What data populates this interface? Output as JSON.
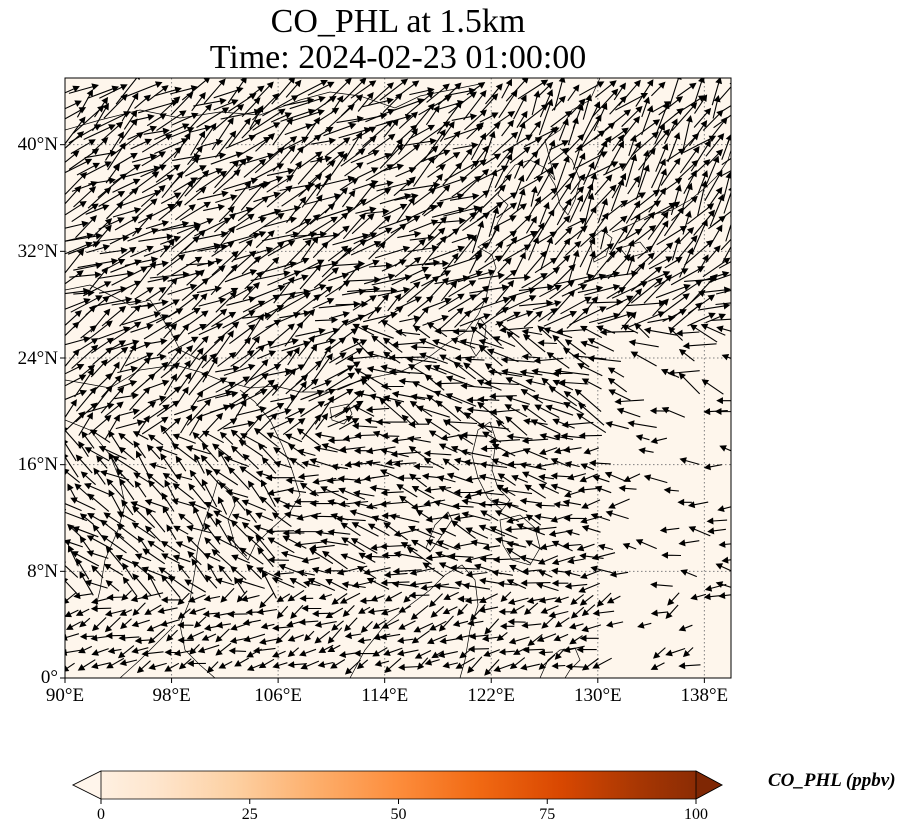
{
  "figure": {
    "title_line1": "CO_PHL at 1.5km",
    "title_line2": "Time: 2024-02-23 01:00:00"
  },
  "map": {
    "extent": {
      "lon": [
        90,
        140
      ],
      "lat": [
        0,
        45
      ]
    },
    "background_color": "#fef6ec",
    "coastline_color": "#000000",
    "gridlines": "dotted gray",
    "lon_ticks": [
      {
        "value": 90,
        "label": "90°E"
      },
      {
        "value": 98,
        "label": "98°E"
      },
      {
        "value": 106,
        "label": "106°E"
      },
      {
        "value": 114,
        "label": "114°E"
      },
      {
        "value": 122,
        "label": "122°E"
      },
      {
        "value": 130,
        "label": "130°E"
      },
      {
        "value": 138,
        "label": "138°E"
      }
    ],
    "lat_ticks": [
      {
        "value": 0,
        "label": "0°"
      },
      {
        "value": 8,
        "label": "8°N"
      },
      {
        "value": 16,
        "label": "16°N"
      },
      {
        "value": 24,
        "label": "24°N"
      },
      {
        "value": 32,
        "label": "32°N"
      },
      {
        "value": 40,
        "label": "40°N"
      }
    ],
    "wind_vectors": "quiver field of black arrows over domain"
  },
  "colorbar": {
    "label": "CO_PHL (ppbv)",
    "range": [
      0,
      100
    ],
    "ticks": [
      "0",
      "25",
      "50",
      "75",
      "100"
    ],
    "colormap": [
      "#fff5eb",
      "#fee6ce",
      "#fdd0a2",
      "#fdae6b",
      "#fd8d3c",
      "#f16913",
      "#d94801",
      "#a63603",
      "#7f2704"
    ],
    "extend": "both"
  }
}
